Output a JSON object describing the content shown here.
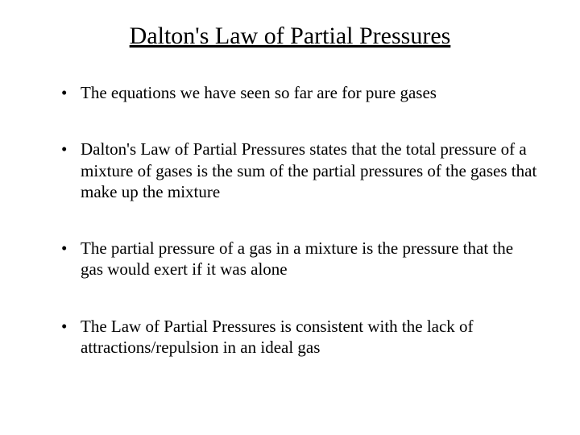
{
  "title": "Dalton's Law of Partial Pressures",
  "bullets": [
    "The equations we have seen so far are for pure gases",
    "Dalton's Law of Partial Pressures states that the total pressure of a mixture of gases is the sum of the partial pressures of the gases that make up the mixture",
    "The partial pressure of a gas in a mixture is the pressure that the gas would exert if it was alone",
    "The Law of Partial Pressures is consistent with the lack of attractions/repulsion in an ideal gas"
  ],
  "colors": {
    "background": "#ffffff",
    "text": "#000000"
  },
  "typography": {
    "title_fontsize": 30,
    "body_fontsize": 21,
    "font_family": "Times New Roman"
  }
}
